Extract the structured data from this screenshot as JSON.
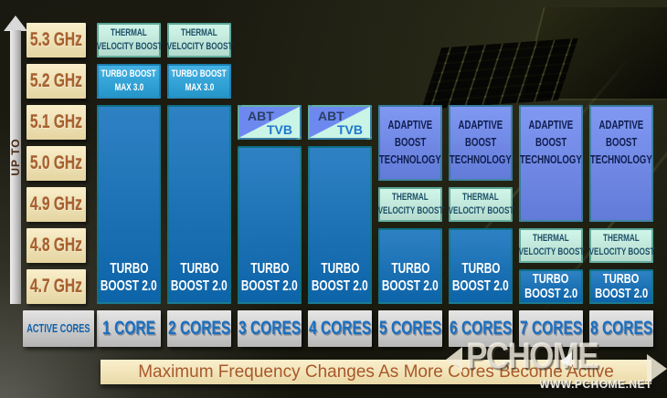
{
  "palette": {
    "background": "#17170e",
    "tick_bg": "#f6e5ae",
    "tick_fg": "#a8612f",
    "core_label_bg": "#d2d2d2",
    "core_label_fg": "#1a6fc0",
    "banner_bg": "#f8e7b2",
    "banner_fg": "#a8582a",
    "arrow_fill": "#d9d9d9",
    "up_to_fg": "#4a2812"
  },
  "watermark": {
    "text": "PCHOME",
    "url": "WWW.PCHOME.NET"
  },
  "chart_data": {
    "type": "heatmap",
    "title": "Maximum Frequency Changes As More Cores Become Active",
    "y_axis": {
      "label": "UP TO",
      "ticks": [
        "5.3 GHz",
        "5.2 GHz",
        "5.1 GHz",
        "5.0 GHz",
        "4.9 GHz",
        "4.8 GHz",
        "4.7 GHz"
      ]
    },
    "x_axis": {
      "label": "ACTIVE CORES",
      "categories": [
        "1 CORE",
        "2 CORES",
        "3 CORES",
        "4 CORES",
        "5 CORES",
        "6 CORES",
        "7 CORES",
        "8 CORES"
      ]
    },
    "legend_position": "none",
    "grid": false,
    "technologies": {
      "tvb": {
        "label_lines": [
          "THERMAL",
          "VELOCITY BOOST"
        ],
        "bg": "#c9f4e6",
        "fg": "#1c4f66"
      },
      "tbm": {
        "label_lines": [
          "TURBO BOOST",
          "MAX 3.0"
        ],
        "bg": "#29a7e1",
        "fg": "#ffffff"
      },
      "tb2": {
        "label_lines": [
          "TURBO",
          "BOOST 2.0"
        ],
        "bg": "#0f6fbb",
        "fg": "#ffffff"
      },
      "abt": {
        "label_lines": [
          "ADAPTIVE",
          "BOOST",
          "TECHNOLOGY"
        ],
        "bg": "#6d89f0",
        "fg": "#101d4f"
      },
      "abt_tvb": {
        "labels": [
          "ABT",
          "TVB"
        ],
        "bg_top": "#6d89f0",
        "bg_bottom": "#c9f4e6",
        "fg_abt": "#2a3f66",
        "fg_tvb": "#1e78cf"
      }
    },
    "columns": [
      {
        "category": "1 CORE",
        "blocks": [
          {
            "tech": "tvb",
            "top_ghz": 5.3,
            "bottom_ghz": 5.3
          },
          {
            "tech": "tbm",
            "top_ghz": 5.2,
            "bottom_ghz": 5.2
          },
          {
            "tech": "tb2",
            "top_ghz": 5.1,
            "bottom_ghz": 4.7
          }
        ]
      },
      {
        "category": "2 CORES",
        "blocks": [
          {
            "tech": "tvb",
            "top_ghz": 5.3,
            "bottom_ghz": 5.3
          },
          {
            "tech": "tbm",
            "top_ghz": 5.2,
            "bottom_ghz": 5.2
          },
          {
            "tech": "tb2",
            "top_ghz": 5.1,
            "bottom_ghz": 4.7
          }
        ]
      },
      {
        "category": "3 CORES",
        "blocks": [
          {
            "tech": "abt_tvb",
            "top_ghz": 5.1,
            "bottom_ghz": 5.1
          },
          {
            "tech": "tb2",
            "top_ghz": 5.0,
            "bottom_ghz": 4.7
          }
        ]
      },
      {
        "category": "4 CORES",
        "blocks": [
          {
            "tech": "abt_tvb",
            "top_ghz": 5.1,
            "bottom_ghz": 5.1
          },
          {
            "tech": "tb2",
            "top_ghz": 5.0,
            "bottom_ghz": 4.7
          }
        ]
      },
      {
        "category": "5 CORES",
        "blocks": [
          {
            "tech": "abt",
            "top_ghz": 5.1,
            "bottom_ghz": 5.0
          },
          {
            "tech": "tvb",
            "top_ghz": 4.9,
            "bottom_ghz": 4.9
          },
          {
            "tech": "tb2",
            "top_ghz": 4.8,
            "bottom_ghz": 4.7
          }
        ]
      },
      {
        "category": "6 CORES",
        "blocks": [
          {
            "tech": "abt",
            "top_ghz": 5.1,
            "bottom_ghz": 5.0
          },
          {
            "tech": "tvb",
            "top_ghz": 4.9,
            "bottom_ghz": 4.9
          },
          {
            "tech": "tb2",
            "top_ghz": 4.8,
            "bottom_ghz": 4.7
          }
        ]
      },
      {
        "category": "7 CORES",
        "blocks": [
          {
            "tech": "abt",
            "top_ghz": 5.1,
            "bottom_ghz": 4.9
          },
          {
            "tech": "tvb",
            "top_ghz": 4.8,
            "bottom_ghz": 4.8
          },
          {
            "tech": "tb2",
            "top_ghz": 4.7,
            "bottom_ghz": 4.7
          }
        ]
      },
      {
        "category": "8 CORES",
        "blocks": [
          {
            "tech": "abt",
            "top_ghz": 5.1,
            "bottom_ghz": 4.9
          },
          {
            "tech": "tvb",
            "top_ghz": 4.8,
            "bottom_ghz": 4.8
          },
          {
            "tech": "tb2",
            "top_ghz": 4.7,
            "bottom_ghz": 4.7
          }
        ]
      }
    ]
  }
}
